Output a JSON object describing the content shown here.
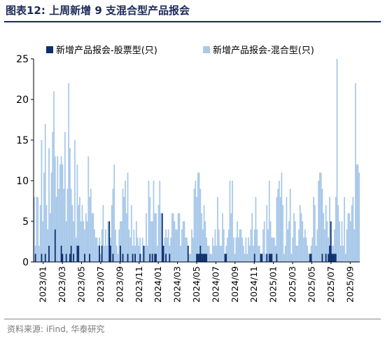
{
  "header": {
    "title": "图表12:  上周新增 9 支混合型产品报会"
  },
  "footer": {
    "source": "资料来源: iFind, 华泰研究"
  },
  "colors": {
    "equity": "#0b2f6e",
    "mixed": "#a9c9ea",
    "title": "#1b2a56"
  },
  "chart_data": {
    "type": "bar",
    "stacked": false,
    "overlay": true,
    "title": "",
    "xlabel": "",
    "ylabel": "",
    "ylim": [
      0,
      25
    ],
    "yticks": [
      "0",
      "5",
      "10",
      "15",
      "20",
      "25"
    ],
    "xtick_labels": [
      "2023/01",
      "2023/03",
      "2023/05",
      "2023/07",
      "2023/09",
      "2023/11",
      "2024/01",
      "2024/03",
      "2024/05",
      "2024/07",
      "2024/09",
      "2024/11",
      "2025/01",
      "2025/03",
      "2025/05",
      "2025/07",
      "2025/09"
    ],
    "legend_position": "top",
    "grid": false,
    "x_range": [
      "2023-01",
      "2025-09"
    ],
    "series": [
      {
        "name": "新增产品报会-股票型(只)",
        "values": [
          0,
          1,
          0,
          0,
          0,
          0,
          1,
          0,
          0,
          1,
          0,
          0,
          2,
          0,
          0,
          0,
          0,
          4,
          0,
          0,
          0,
          0,
          2,
          1,
          0,
          0,
          1,
          0,
          0,
          1,
          2,
          0,
          1,
          0,
          0,
          2,
          2,
          0,
          0,
          0,
          0,
          1,
          0,
          0,
          0,
          1,
          0,
          0,
          0,
          0,
          0,
          0,
          0,
          2,
          0,
          2,
          0,
          0,
          0,
          0,
          0,
          5,
          2,
          0,
          1,
          0,
          0,
          0,
          0,
          0,
          2,
          0,
          1,
          0,
          0,
          0,
          1,
          0,
          0,
          0,
          1,
          0,
          1,
          0,
          0,
          0,
          1,
          0,
          0,
          2,
          0,
          0,
          0,
          0,
          1,
          0,
          1,
          0,
          1,
          1,
          0,
          0,
          0,
          0,
          6,
          2,
          0,
          1,
          0,
          0,
          1,
          0,
          0,
          0,
          0,
          0,
          0,
          0,
          0,
          0,
          0,
          0,
          0,
          0,
          0,
          2,
          0,
          0,
          0,
          0,
          0,
          0,
          1,
          1,
          1,
          2,
          1,
          1,
          1,
          1,
          1,
          0,
          0,
          0,
          0,
          0,
          0,
          0,
          0,
          0,
          0,
          0,
          0,
          0,
          0,
          1,
          1,
          0,
          0,
          0,
          0,
          0,
          0,
          0,
          0,
          0,
          0,
          0,
          0,
          0,
          0,
          0,
          0,
          0,
          0,
          0,
          0,
          0,
          0,
          1,
          0,
          0,
          0,
          0,
          1,
          1,
          0,
          0,
          0,
          1,
          0,
          1,
          1,
          1,
          0,
          0,
          0,
          1,
          0,
          0,
          0,
          0,
          0,
          0,
          0,
          0,
          0,
          0,
          0,
          0,
          0,
          0,
          0,
          0,
          0,
          0,
          0,
          0,
          0,
          0,
          0,
          0,
          0,
          0,
          1,
          1,
          0,
          0,
          0,
          0,
          0,
          0,
          0,
          0,
          1,
          0,
          0,
          1,
          0,
          1,
          2,
          5,
          1,
          1,
          1,
          1,
          0,
          0,
          0
        ]
      },
      {
        "name": "新增产品报会-混合型(只)",
        "values": [
          8,
          2,
          8,
          8,
          2,
          7,
          15,
          5,
          11,
          17,
          7,
          4,
          14,
          6,
          11,
          16,
          21,
          13,
          8,
          13,
          9,
          12,
          13,
          12,
          9,
          16,
          5,
          9,
          22,
          14,
          9,
          7,
          5,
          15,
          3,
          12,
          7,
          8,
          5,
          7,
          5,
          4,
          6,
          5,
          13,
          8,
          9,
          6,
          6,
          4,
          3,
          3,
          2,
          3,
          1,
          4,
          7,
          2,
          4,
          2,
          5,
          5,
          3,
          7,
          9,
          12,
          4,
          2,
          1,
          4,
          5,
          5,
          9,
          8,
          10,
          6,
          11,
          4,
          3,
          7,
          2,
          4,
          2,
          5,
          3,
          2,
          3,
          1,
          3,
          1,
          2,
          6,
          2,
          10,
          8,
          5,
          5,
          10,
          6,
          6,
          2,
          7,
          10,
          6,
          3,
          1,
          3,
          4,
          3,
          4,
          2,
          3,
          6,
          6,
          5,
          4,
          4,
          6,
          6,
          2,
          4,
          5,
          5,
          3,
          3,
          2,
          1,
          1,
          4,
          3,
          9,
          10,
          8,
          11,
          11,
          9,
          6,
          4,
          7,
          5,
          3,
          2,
          2,
          1,
          1,
          3,
          2,
          4,
          2,
          8,
          4,
          2,
          2,
          6,
          4,
          1,
          2,
          3,
          4,
          10,
          6,
          10,
          3,
          1,
          3,
          5,
          3,
          4,
          4,
          3,
          2,
          1,
          3,
          1,
          3,
          2,
          4,
          6,
          2,
          4,
          8,
          4,
          2,
          2,
          1,
          1,
          4,
          5,
          1,
          7,
          4,
          10,
          5,
          3,
          3,
          3,
          2,
          8,
          9,
          10,
          8,
          11,
          7,
          1,
          2,
          8,
          4,
          5,
          9,
          1,
          3,
          6,
          5,
          2,
          2,
          4,
          7,
          6,
          5,
          3,
          4,
          3,
          2,
          1,
          1,
          2,
          3,
          8,
          7,
          2,
          4,
          10,
          11,
          11,
          9,
          6,
          4,
          7,
          5,
          3,
          8,
          4,
          2,
          2,
          4,
          8,
          25,
          7,
          5,
          2,
          5,
          2,
          8,
          1,
          4,
          6,
          6,
          5,
          7,
          8,
          4,
          22,
          12,
          12,
          11
        ]
      }
    ]
  }
}
